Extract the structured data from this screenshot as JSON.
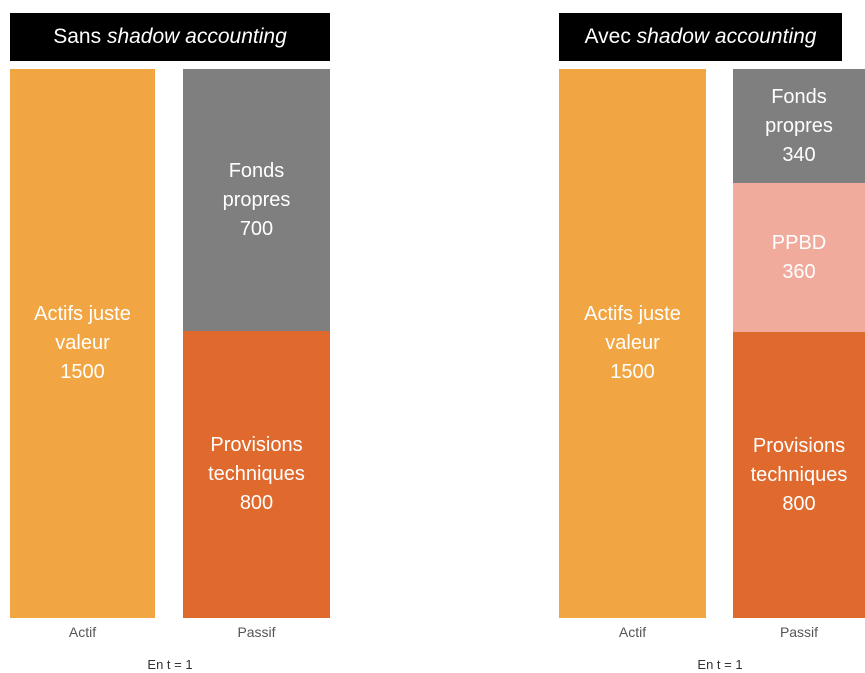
{
  "left": {
    "title_prefix": "Sans ",
    "title_italic": "shadow accounting",
    "actif": {
      "line1": "Actifs juste",
      "line2": "valeur",
      "value": "1500"
    },
    "fonds": {
      "line1": "Fonds",
      "line2": "propres",
      "value": "700"
    },
    "provisions": {
      "line1": "Provisions",
      "line2": "techniques",
      "value": "800"
    },
    "label_actif": "Actif",
    "label_passif": "Passif",
    "footer": "En t = 1"
  },
  "right": {
    "title_prefix": "Avec ",
    "title_italic": "shadow accounting",
    "actif": {
      "line1": "Actifs juste",
      "line2": "valeur",
      "value": "1500"
    },
    "fonds": {
      "line1": "Fonds",
      "line2": "propres",
      "value": "340"
    },
    "ppbd": {
      "line1": "PPBD",
      "value": "360"
    },
    "provisions": {
      "line1": "Provisions",
      "line2": "techniques",
      "value": "800"
    },
    "label_actif": "Actif",
    "label_passif": "Passif",
    "footer": "En t = 1"
  },
  "colors": {
    "actif": "#F2A643",
    "fonds_propres": "#7F7F7F",
    "provisions": "#E06A2E",
    "ppbd": "#F1AB9C",
    "header_bg": "#000000"
  }
}
